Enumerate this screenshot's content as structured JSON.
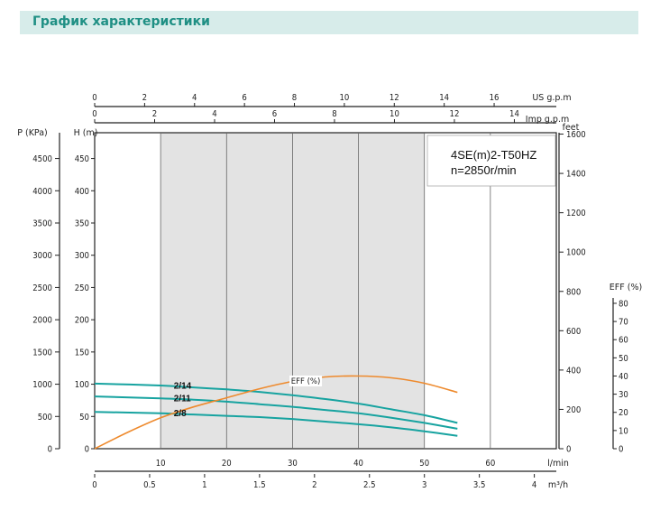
{
  "header": {
    "title": "График характеристики"
  },
  "chart_data": {
    "type": "line",
    "model_info": {
      "line1": "4SE(m)2-T50HZ",
      "line2": "n=2850r/min"
    },
    "x_axes": {
      "flow_lmin": {
        "label": "l/min",
        "range": [
          0,
          70
        ],
        "ticks": [
          "10",
          "20",
          "30",
          "40",
          "50",
          "60"
        ]
      },
      "flow_m3h": {
        "label": "m³/h",
        "range": [
          0,
          4.2
        ],
        "ticks": [
          "0",
          "0.5",
          "1",
          "1.5",
          "2",
          "2.5",
          "3",
          "3.5",
          "4"
        ]
      },
      "us_gpm": {
        "label": "US g.p.m",
        "range": [
          0,
          18.49
        ],
        "ticks": [
          "0",
          "2",
          "4",
          "6",
          "8",
          "10",
          "12",
          "14",
          "16"
        ]
      },
      "imp_gpm": {
        "label": "Imp g.p.m",
        "range": [
          0,
          15.4
        ],
        "ticks": [
          "0",
          "2",
          "4",
          "6",
          "8",
          "10",
          "12",
          "14"
        ]
      }
    },
    "y_axes": {
      "pressure_kpa": {
        "label": "P (KPa)",
        "range": [
          0,
          4900
        ],
        "ticks": [
          "0",
          "500",
          "1000",
          "1500",
          "2000",
          "2500",
          "3000",
          "3500",
          "4000",
          "4500"
        ]
      },
      "head_m": {
        "label": "H (m)",
        "range": [
          0,
          490
        ],
        "ticks": [
          "0",
          "50",
          "100",
          "150",
          "200",
          "250",
          "300",
          "350",
          "400",
          "450"
        ]
      },
      "head_feet": {
        "label": "feet",
        "range": [
          0,
          1607
        ],
        "ticks": [
          "0",
          "200",
          "400",
          "600",
          "800",
          "1000",
          "1200",
          "1400",
          "1600"
        ]
      },
      "eff_pct": {
        "label": "EFF (%)",
        "range": [
          0,
          100
        ],
        "ticks": [
          "0",
          "10",
          "20",
          "30",
          "40",
          "50",
          "60",
          "70",
          "80"
        ]
      }
    },
    "shaded_region": {
      "x_start": 10,
      "x_end": 50
    },
    "series": [
      {
        "name": "2/14",
        "color": "#17a3a0",
        "x": [
          0,
          10,
          15,
          20,
          25,
          30,
          35,
          40,
          45,
          50,
          55
        ],
        "y": [
          101,
          98,
          95,
          92,
          88,
          83,
          77,
          70,
          61,
          52,
          40
        ]
      },
      {
        "name": "2/11",
        "color": "#17a3a0",
        "x": [
          0,
          10,
          15,
          20,
          25,
          30,
          35,
          40,
          45,
          50,
          55
        ],
        "y": [
          81,
          78,
          76,
          73,
          69,
          65,
          60,
          55,
          48,
          40,
          31
        ]
      },
      {
        "name": "2/8",
        "color": "#17a3a0",
        "x": [
          0,
          10,
          15,
          20,
          25,
          30,
          35,
          40,
          45,
          50,
          55
        ],
        "y": [
          57,
          55,
          53,
          51,
          49,
          46,
          42,
          38,
          33,
          27,
          20
        ]
      },
      {
        "name": "EFF (%)",
        "color": "#ee8a2d",
        "axis": "eff_pct",
        "x": [
          0,
          5,
          10,
          15,
          20,
          25,
          30,
          35,
          40,
          45,
          50,
          55
        ],
        "y": [
          0,
          9,
          17,
          23,
          28,
          33,
          37,
          39.5,
          40,
          39,
          36,
          31
        ]
      }
    ],
    "curve_labels": [
      "2/14",
      "2/11",
      "2/8",
      "EFF (%)"
    ]
  }
}
